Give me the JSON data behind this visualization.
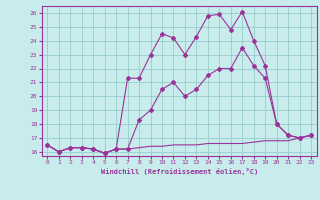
{
  "xlabel": "Windchill (Refroidissement éolien,°C)",
  "background_color": "#c8ecec",
  "grid_color": "#99cccc",
  "line_color": "#993399",
  "xlim": [
    -0.5,
    23.5
  ],
  "ylim": [
    15.7,
    26.5
  ],
  "yticks": [
    16,
    17,
    18,
    19,
    20,
    21,
    22,
    23,
    24,
    25,
    26
  ],
  "xticks": [
    0,
    1,
    2,
    3,
    4,
    5,
    6,
    7,
    8,
    9,
    10,
    11,
    12,
    13,
    14,
    15,
    16,
    17,
    18,
    19,
    20,
    21,
    22,
    23
  ],
  "series1_x": [
    0,
    1,
    2,
    3,
    4,
    5,
    6,
    7,
    8,
    9,
    10,
    11,
    12,
    13,
    14,
    15,
    16,
    17,
    18,
    19,
    20,
    21,
    22,
    23
  ],
  "series1_y": [
    16.5,
    16.0,
    16.3,
    16.3,
    16.2,
    15.9,
    16.2,
    16.2,
    16.3,
    16.4,
    16.4,
    16.5,
    16.5,
    16.5,
    16.6,
    16.6,
    16.6,
    16.6,
    16.7,
    16.8,
    16.8,
    16.8,
    17.0,
    17.2
  ],
  "series2_x": [
    0,
    1,
    2,
    3,
    4,
    5,
    6,
    7,
    8,
    9,
    10,
    11,
    12,
    13,
    14,
    15,
    16,
    17,
    18,
    19,
    20,
    21,
    22,
    23
  ],
  "series2_y": [
    16.5,
    16.0,
    16.3,
    16.3,
    16.2,
    15.9,
    16.2,
    16.2,
    18.3,
    19.0,
    20.5,
    21.0,
    20.0,
    20.5,
    21.5,
    22.0,
    22.0,
    23.5,
    22.2,
    21.3,
    18.0,
    17.2,
    17.0,
    17.2
  ],
  "series3_x": [
    0,
    1,
    2,
    3,
    4,
    5,
    6,
    7,
    8,
    9,
    10,
    11,
    12,
    13,
    14,
    15,
    16,
    17,
    18,
    19,
    20,
    21,
    22,
    23
  ],
  "series3_y": [
    16.5,
    16.0,
    16.3,
    16.3,
    16.2,
    15.9,
    16.2,
    21.3,
    21.3,
    23.0,
    24.5,
    24.2,
    23.0,
    24.3,
    25.8,
    25.9,
    24.8,
    26.1,
    24.0,
    22.2,
    18.0,
    17.2,
    17.0,
    17.2
  ]
}
